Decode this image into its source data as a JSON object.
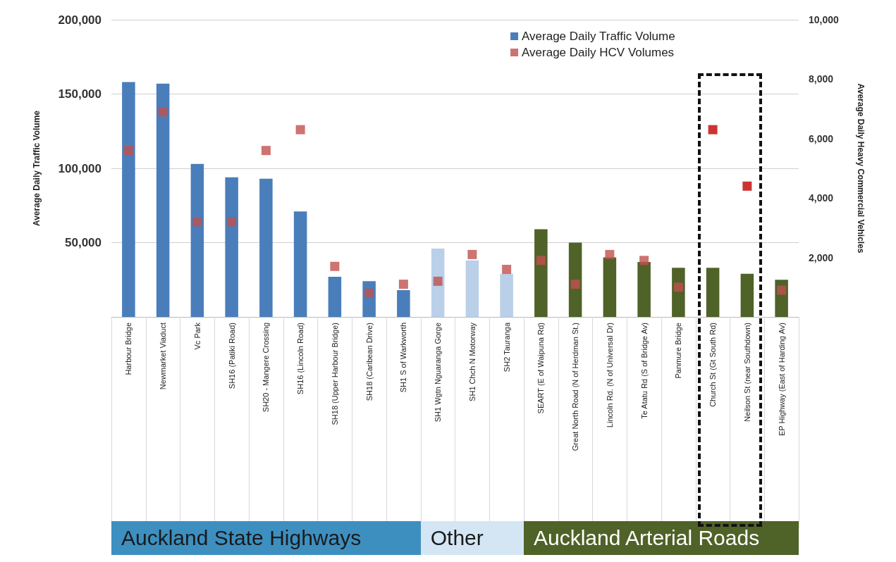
{
  "chart_data": {
    "type": "bar",
    "ylabel": "Average Daily Traffic Volume",
    "y2label": "Average Daily Heavy Commercial Vehicles",
    "categories": [
      "Harbour Bridge",
      "Newmarket Viaduct",
      "Vc Park",
      "SH16 (Patiki Road)",
      "SH20 - Mangere Crossing",
      "SH16 (Lincoln Road)",
      "SH18 (Upper Harbour Bridge)",
      "SH18 (Caribean Drive)",
      "SH1 S of Warkworth",
      "SH1 Wgtn Nguaranga Gorge",
      "SH1 Chch N Motorway",
      "SH2 Tauranga",
      "SEART (E of Waipuna Rd)",
      "Great North Road (N of Herdman St.)",
      "Lincoln Rd. (N of Universal Dr)",
      "Te Atatu Rd (S of Bridge Av)",
      "Panmure Bridge",
      "Church St (Gt South Rd)",
      "Neilson St (near Southdown)",
      "EP Highway (East of Harding Av)"
    ],
    "series": [
      {
        "name": "Average Daily Traffic Volume",
        "color": "#4a7ebb",
        "values": [
          158000,
          157000,
          103000,
          94000,
          93000,
          71000,
          27000,
          24000,
          18000,
          46000,
          38000,
          29000,
          59000,
          50000,
          40000,
          37000,
          33000,
          33000,
          29000,
          25000
        ],
        "colors": [
          "#4a7ebb",
          "#4a7ebb",
          "#4a7ebb",
          "#4a7ebb",
          "#4a7ebb",
          "#4a7ebb",
          "#4a7ebb",
          "#4a7ebb",
          "#4a7ebb",
          "#b9d0e8",
          "#b9d0e8",
          "#b9d0e8",
          "#4f6228",
          "#4f6228",
          "#4f6228",
          "#4f6228",
          "#4f6228",
          "#4f6228",
          "#4f6228",
          "#4f6228"
        ]
      },
      {
        "name": "Average Daily HCV Volumes",
        "type": "scatter",
        "axis": "y2",
        "marker": "square",
        "color": "#c0504d",
        "values": [
          5600,
          6900,
          3200,
          3200,
          5600,
          6300,
          1700,
          800,
          1100,
          1200,
          2100,
          1600,
          1900,
          1100,
          2100,
          1900,
          1000,
          6300,
          4400,
          900
        ],
        "colors": [
          "#c0504d",
          "#c0504d",
          "#c0504d",
          "#c0504d",
          "#c0504d",
          "#c0504d",
          "#c0504d",
          "#c0504d",
          "#c0504d",
          "#c0504d",
          "#c0504d",
          "#c0504d",
          "#c0504d",
          "#c0504d",
          "#c0504d",
          "#c0504d",
          "#c0504d",
          "#c00000",
          "#c00000",
          "#c0504d"
        ]
      }
    ],
    "ylim": [
      0,
      200000
    ],
    "yticks": [
      {
        "value": 50000,
        "label": "50,000"
      },
      {
        "value": 100000,
        "label": "100,000"
      },
      {
        "value": 150000,
        "label": "150,000"
      },
      {
        "value": 200000,
        "label": "200,000"
      }
    ],
    "y2lim": [
      0,
      10000
    ],
    "y2ticks": [
      {
        "value": 2000,
        "label": "2,000"
      },
      {
        "value": 4000,
        "label": "4,000"
      },
      {
        "value": 6000,
        "label": "6,000"
      },
      {
        "value": 8000,
        "label": "8,000"
      },
      {
        "value": 10000,
        "label": "10,000"
      }
    ],
    "grid": "y",
    "legend": "top right",
    "annotations": [
      "Auckland State Highways",
      "Other",
      "Auckland Arterial Roads"
    ]
  }
}
